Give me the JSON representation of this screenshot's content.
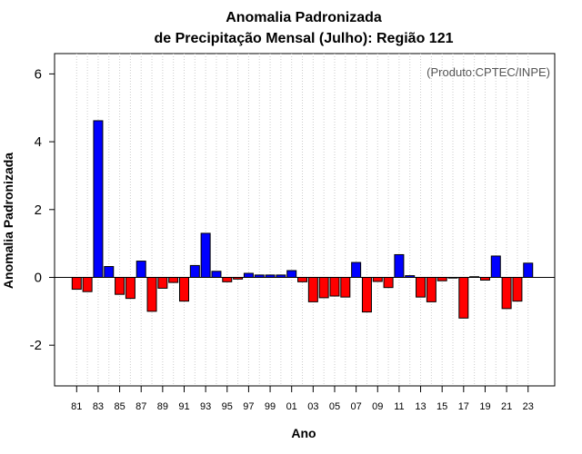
{
  "chart_data": {
    "type": "bar",
    "title": [
      "Anomalia Padronizada",
      "de Precipitação Mensal (Julho): Região 121"
    ],
    "xlabel": "Ano",
    "ylabel": "Anomalia Padronizada",
    "annotation": "(Produto:CPTEC/INPE)",
    "ylim": [
      -3.2,
      6.6
    ],
    "yticks": [
      -2,
      0,
      2,
      4,
      6
    ],
    "yticklabels": [
      "-2",
      "0",
      "2",
      "4",
      "6"
    ],
    "xticklabels": [
      "81",
      "83",
      "85",
      "87",
      "89",
      "91",
      "93",
      "95",
      "97",
      "99",
      "01",
      "03",
      "05",
      "07",
      "09",
      "11",
      "13",
      "15",
      "17",
      "19",
      "21",
      "23"
    ],
    "grid": "vertical dotted",
    "positive_color": "#0000ff",
    "negative_color": "#ff0000",
    "categories": [
      "1981",
      "1982",
      "1983",
      "1984",
      "1985",
      "1986",
      "1987",
      "1988",
      "1989",
      "1990",
      "1991",
      "1992",
      "1993",
      "1994",
      "1995",
      "1996",
      "1997",
      "1998",
      "1999",
      "2000",
      "2001",
      "2002",
      "2003",
      "2004",
      "2005",
      "2006",
      "2007",
      "2008",
      "2009",
      "2010",
      "2011",
      "2012",
      "2013",
      "2014",
      "2015",
      "2016",
      "2017",
      "2018",
      "2019",
      "2020",
      "2021",
      "2022",
      "2023"
    ],
    "values": [
      -0.35,
      -0.42,
      4.62,
      0.32,
      -0.5,
      -0.62,
      0.48,
      -1.0,
      -0.32,
      -0.15,
      -0.7,
      0.35,
      1.3,
      0.18,
      -0.13,
      -0.05,
      0.12,
      0.07,
      0.07,
      0.07,
      0.2,
      -0.13,
      -0.72,
      -0.6,
      -0.55,
      -0.58,
      0.44,
      -1.02,
      -0.12,
      -0.3,
      0.67,
      0.05,
      -0.58,
      -0.72,
      -0.1,
      -0.02,
      -1.2,
      0.02,
      -0.08,
      0.63,
      -0.92,
      -0.7,
      0.42
    ]
  }
}
